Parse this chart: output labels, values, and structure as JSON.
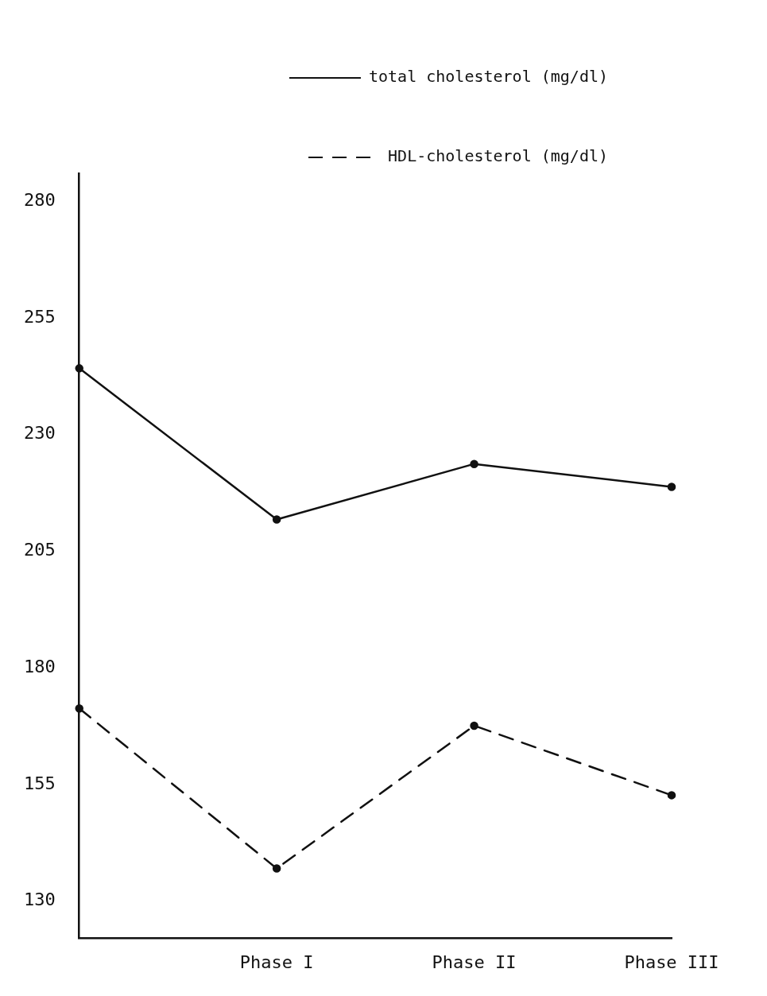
{
  "chart_data": {
    "type": "line",
    "categories": [
      null,
      "Phase I",
      "Phase II",
      "Phase III"
    ],
    "series": [
      {
        "name": "total cholesterol (mg/dl)",
        "color": "#111111",
        "line_style": "solid",
        "values": [
          244.2,
          211.8,
          223.7,
          218.8
        ]
      },
      {
        "name": "HDL-cholesterol (mg/dl)",
        "color": "#111111",
        "line_style": "dashed",
        "values": [
          171.3,
          137,
          167.6,
          152.7
        ]
      }
    ],
    "ylim": [
      122,
      286
    ],
    "yticks": [
      130,
      155,
      180,
      205,
      230,
      255,
      280
    ],
    "grid": false,
    "legend": "top right",
    "marker": "circle"
  }
}
